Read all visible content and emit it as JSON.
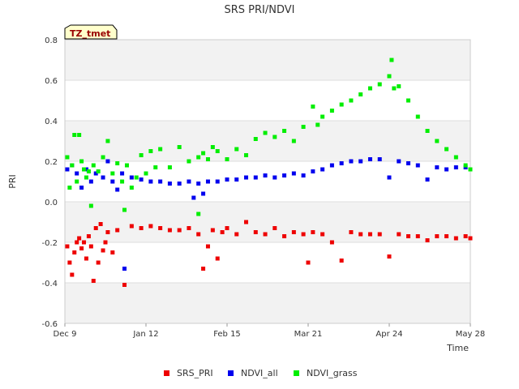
{
  "chart_data": {
    "type": "scatter",
    "title": "SRS PRI/NDVI",
    "xlabel": "Time",
    "ylabel": "PRI",
    "badge": "TZ_tmet",
    "xlim": [
      0,
      170
    ],
    "ylim": [
      -0.6,
      0.8
    ],
    "y_ticks": [
      {
        "value": -0.6,
        "label": "-0.6"
      },
      {
        "value": -0.4,
        "label": "-0.4"
      },
      {
        "value": -0.2,
        "label": "-0.2"
      },
      {
        "value": 0.0,
        "label": "0.0"
      },
      {
        "value": 0.2,
        "label": "0.2"
      },
      {
        "value": 0.4,
        "label": "0.4"
      },
      {
        "value": 0.6,
        "label": "0.6"
      },
      {
        "value": 0.8,
        "label": "0.8"
      }
    ],
    "x_ticks": [
      {
        "value": 0,
        "label": "Dec 9"
      },
      {
        "value": 34,
        "label": "Jan 12"
      },
      {
        "value": 68,
        "label": "Feb 15"
      },
      {
        "value": 102,
        "label": "Mar 21"
      },
      {
        "value": 136,
        "label": "Apr 24"
      },
      {
        "value": 170,
        "label": "May 28"
      }
    ],
    "colors": {
      "SRS_PRI": "#ee0000",
      "NDVI_all": "#0000ee",
      "NDVI_grass": "#00ee00",
      "band": "#f2f2f2",
      "badge_fill": "#ffffcc",
      "badge_text": "#990000"
    },
    "series": [
      {
        "name": "SRS_PRI",
        "color": "#ee0000",
        "x": [
          1,
          2,
          3,
          4,
          5,
          6,
          7,
          8,
          9,
          10,
          11,
          12,
          13,
          14,
          15,
          16,
          17,
          18,
          20,
          22,
          25,
          28,
          32,
          36,
          40,
          44,
          48,
          52,
          56,
          58,
          60,
          62,
          64,
          66,
          68,
          72,
          76,
          80,
          84,
          88,
          92,
          96,
          100,
          102,
          104,
          108,
          112,
          116,
          120,
          124,
          128,
          132,
          136,
          140,
          144,
          148,
          152,
          156,
          160,
          164,
          168,
          170
        ],
        "y": [
          -0.22,
          -0.3,
          -0.36,
          -0.25,
          -0.2,
          -0.18,
          -0.23,
          -0.2,
          -0.28,
          -0.17,
          -0.22,
          -0.39,
          -0.13,
          -0.3,
          -0.11,
          -0.24,
          -0.2,
          -0.15,
          -0.25,
          -0.14,
          -0.41,
          -0.12,
          -0.13,
          -0.12,
          -0.13,
          -0.14,
          -0.14,
          -0.13,
          -0.16,
          -0.33,
          -0.22,
          -0.14,
          -0.28,
          -0.15,
          -0.13,
          -0.16,
          -0.1,
          -0.15,
          -0.16,
          -0.13,
          -0.17,
          -0.15,
          -0.16,
          -0.3,
          -0.15,
          -0.16,
          -0.2,
          -0.29,
          -0.15,
          -0.16,
          -0.16,
          -0.16,
          -0.27,
          -0.16,
          -0.17,
          -0.17,
          -0.19,
          -0.17,
          -0.17,
          -0.18,
          -0.17,
          -0.18
        ]
      },
      {
        "name": "NDVI_all",
        "color": "#0000ee",
        "x": [
          1,
          3,
          5,
          7,
          9,
          11,
          13,
          16,
          18,
          20,
          22,
          24,
          25,
          28,
          32,
          36,
          40,
          44,
          48,
          52,
          54,
          56,
          58,
          60,
          64,
          68,
          72,
          76,
          80,
          84,
          88,
          92,
          96,
          100,
          104,
          108,
          112,
          116,
          120,
          124,
          128,
          132,
          136,
          140,
          144,
          148,
          152,
          156,
          160,
          164,
          168,
          170
        ],
        "y": [
          0.16,
          0.18,
          0.14,
          0.07,
          0.16,
          0.1,
          0.14,
          0.12,
          0.2,
          0.1,
          0.06,
          0.14,
          -0.33,
          0.12,
          0.11,
          0.1,
          0.1,
          0.09,
          0.09,
          0.1,
          0.02,
          0.09,
          0.04,
          0.1,
          0.1,
          0.11,
          0.11,
          0.12,
          0.12,
          0.13,
          0.12,
          0.13,
          0.14,
          0.13,
          0.15,
          0.16,
          0.18,
          0.19,
          0.2,
          0.2,
          0.21,
          0.21,
          0.12,
          0.2,
          0.19,
          0.18,
          0.11,
          0.17,
          0.16,
          0.17,
          0.17,
          0.16
        ]
      },
      {
        "name": "NDVI_grass",
        "color": "#00ee00",
        "x": [
          1,
          2,
          3,
          4,
          5,
          6,
          7,
          8,
          9,
          10,
          11,
          12,
          14,
          16,
          18,
          20,
          22,
          24,
          25,
          26,
          28,
          30,
          32,
          34,
          36,
          38,
          40,
          44,
          48,
          52,
          56,
          56,
          58,
          60,
          62,
          64,
          68,
          72,
          76,
          80,
          84,
          88,
          92,
          96,
          100,
          104,
          106,
          108,
          112,
          116,
          120,
          124,
          128,
          132,
          136,
          137,
          138,
          140,
          144,
          148,
          152,
          156,
          160,
          164,
          168,
          170
        ],
        "y": [
          0.22,
          0.07,
          0.18,
          0.33,
          0.1,
          0.33,
          0.2,
          0.16,
          0.12,
          0.15,
          -0.02,
          0.18,
          0.15,
          0.22,
          0.3,
          0.14,
          0.19,
          0.1,
          -0.04,
          0.18,
          0.07,
          0.12,
          0.23,
          0.14,
          0.25,
          0.17,
          0.26,
          0.17,
          0.27,
          0.2,
          0.22,
          -0.06,
          0.24,
          0.21,
          0.27,
          0.25,
          0.21,
          0.26,
          0.23,
          0.31,
          0.34,
          0.32,
          0.35,
          0.3,
          0.37,
          0.47,
          0.38,
          0.42,
          0.45,
          0.48,
          0.5,
          0.53,
          0.56,
          0.58,
          0.62,
          0.7,
          0.56,
          0.57,
          0.5,
          0.42,
          0.35,
          0.3,
          0.26,
          0.22,
          0.18,
          0.16
        ]
      }
    ]
  }
}
